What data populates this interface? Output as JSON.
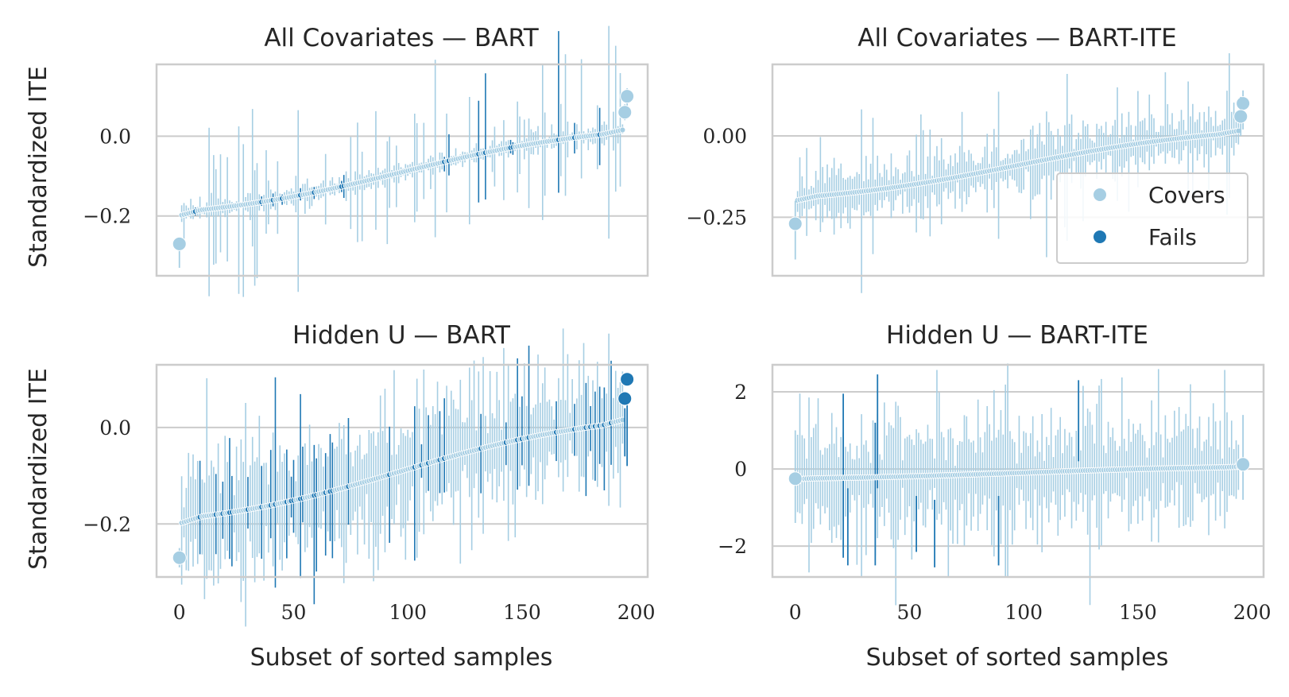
{
  "colors": {
    "covers": "#a6cee3",
    "fails": "#1f78b4",
    "grid": "#cccccc",
    "frame": "#cccccc",
    "text": "#262626"
  },
  "legend": {
    "covers": "Covers",
    "fails": "Fails",
    "placement": "lower-right of top-right panel"
  },
  "chart_data": [
    {
      "id": "p11",
      "type": "errorbar-scatter",
      "title": "All Covariates — BART",
      "xlabel": "",
      "ylabel": "Standardized ITE",
      "xlim": [
        -10,
        205
      ],
      "ylim": [
        -0.35,
        0.18
      ],
      "yticks": [
        0.0,
        -0.2
      ],
      "ytick_labels": [
        "0.0",
        "−0.2"
      ],
      "xticks": [],
      "xtick_labels": [],
      "n": 196,
      "spread": [
        -0.19,
        0.045
      ],
      "ci_halfwidth": 0.02,
      "ci_outlier_fraction": 0.3,
      "ci_outlier_scale": 0.09,
      "fails_fraction": 0.1,
      "seed": 11,
      "end_points": [
        {
          "x": 0,
          "y": -0.27,
          "status": "covers",
          "lo": -0.33,
          "hi": -0.27
        },
        {
          "x": 196,
          "y": 0.1,
          "status": "covers",
          "lo": 0.05,
          "hi": 0.12
        },
        {
          "x": 195,
          "y": 0.06,
          "status": "covers",
          "lo": 0.04,
          "hi": 0.08
        }
      ]
    },
    {
      "id": "p12",
      "type": "errorbar-scatter",
      "title": "All Covariates — BART-ITE",
      "xlabel": "",
      "ylabel": "",
      "xlim": [
        -10,
        205
      ],
      "ylim": [
        -0.43,
        0.22
      ],
      "yticks": [
        0.0,
        -0.25
      ],
      "ytick_labels": [
        "0.00",
        "−0.25"
      ],
      "xticks": [],
      "xtick_labels": [],
      "n": 196,
      "spread": [
        -0.19,
        0.045
      ],
      "ci_halfwidth": 0.06,
      "ci_outlier_fraction": 0.35,
      "ci_outlier_scale": 0.08,
      "fails_fraction": 0.0,
      "seed": 12,
      "end_points": [
        {
          "x": 0,
          "y": -0.27,
          "status": "covers",
          "lo": -0.38,
          "hi": -0.2
        },
        {
          "x": 196,
          "y": 0.1,
          "status": "covers",
          "lo": 0.02,
          "hi": 0.14
        },
        {
          "x": 195,
          "y": 0.06,
          "status": "covers",
          "lo": 0.0,
          "hi": 0.12
        }
      ]
    },
    {
      "id": "p21",
      "type": "errorbar-scatter",
      "title": "Hidden U — BART",
      "xlabel": "Subset of sorted samples",
      "ylabel": "Standardized ITE",
      "xlim": [
        -10,
        205
      ],
      "ylim": [
        -0.31,
        0.13
      ],
      "yticks": [
        0.0,
        -0.2
      ],
      "ytick_labels": [
        "0.0",
        "−0.2"
      ],
      "xticks": [
        0,
        50,
        100,
        150,
        200
      ],
      "xtick_labels": [
        "0",
        "50",
        "100",
        "150",
        "200"
      ],
      "n": 196,
      "spread": [
        -0.19,
        0.045
      ],
      "ci_halfwidth": 0.1,
      "ci_outlier_fraction": 0.2,
      "ci_outlier_scale": 0.05,
      "fails_fraction": 0.28,
      "seed": 21,
      "end_points": [
        {
          "x": 0,
          "y": -0.27,
          "status": "covers",
          "lo": -0.29,
          "hi": -0.25
        },
        {
          "x": 196,
          "y": 0.1,
          "status": "fails",
          "lo": -0.08,
          "hi": 0.06
        },
        {
          "x": 195,
          "y": 0.06,
          "status": "fails",
          "lo": -0.06,
          "hi": 0.04
        }
      ]
    },
    {
      "id": "p22",
      "type": "errorbar-scatter",
      "title": "Hidden U — BART-ITE",
      "xlabel": "Subset of sorted samples",
      "ylabel": "",
      "xlim": [
        -10,
        205
      ],
      "ylim": [
        -2.8,
        2.7
      ],
      "yticks": [
        2,
        0,
        -2
      ],
      "ytick_labels": [
        "2",
        "0",
        "−2"
      ],
      "xticks": [
        0,
        50,
        100,
        150,
        200
      ],
      "xtick_labels": [
        "0",
        "50",
        "100",
        "150",
        "200"
      ],
      "n": 196,
      "spread": [
        -0.25,
        0.1
      ],
      "ci_halfwidth": 1.1,
      "ci_outlier_fraction": 0.25,
      "ci_outlier_scale": 0.5,
      "fails_fraction": 0.0,
      "seed": 22,
      "end_points": [
        {
          "x": 0,
          "y": -0.25,
          "status": "covers",
          "lo": -1.4,
          "hi": 1.0
        },
        {
          "x": 196,
          "y": 0.12,
          "status": "covers",
          "lo": -0.8,
          "hi": 1.4
        }
      ],
      "fails_bars": [
        {
          "x": 21,
          "lo": -2.3,
          "hi": 1.95
        },
        {
          "x": 23,
          "lo": -2.5,
          "hi": -0.5
        },
        {
          "x": 35,
          "lo": -2.5,
          "hi": 1.2
        },
        {
          "x": 36,
          "lo": -0.5,
          "hi": 2.45
        },
        {
          "x": 53,
          "lo": -2.15,
          "hi": -0.7
        },
        {
          "x": 61,
          "lo": -2.55,
          "hi": -0.8
        },
        {
          "x": 89,
          "lo": -2.5,
          "hi": -0.7
        },
        {
          "x": 124,
          "lo": 0.2,
          "hi": 2.3
        }
      ]
    }
  ]
}
